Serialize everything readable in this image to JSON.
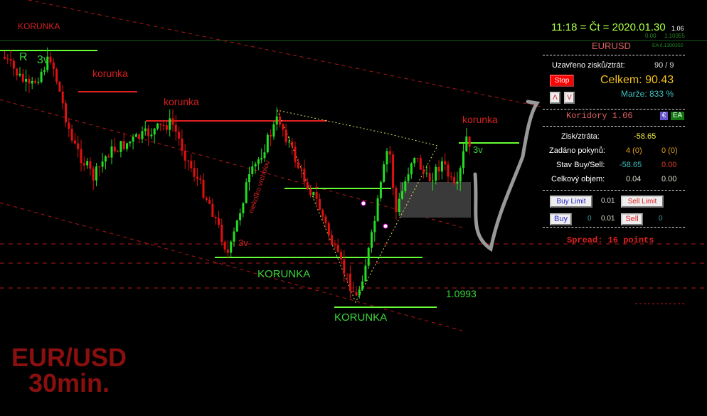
{
  "chart": {
    "labels": {
      "korunka_top": "KORUNKA",
      "korunka_1": "korunka",
      "korunka_2": "korunka",
      "korunka_3": "korunka",
      "korunka_green_1": "KORUNKA",
      "korunka_green_2": "KORUNKA",
      "r_label": "R",
      "three_v_1": "3v",
      "three_v_2": "3v",
      "three_v_3": "3v",
      "price_label": "1.0993",
      "diagonal_note": "niekoľko vrcholov",
      "symbol_watermark": "EUR/USD",
      "timeframe_watermark": "30min."
    },
    "colors": {
      "bull": "#22dd22",
      "bear": "#e01010",
      "level_green": "#66ff33",
      "level_red": "#e02020"
    }
  },
  "panel": {
    "clock": "11:18 = Čt = 2020.01.30",
    "clock_version": "1.06",
    "sub_left": "0.00",
    "sub_right": "1.10355",
    "symbol": "EURUSD",
    "ea_id": "EA č.1300302",
    "closed_label": "Uzavřeno zisků/ztrát:",
    "closed_value": "90 / 9",
    "stop_button": "Stop",
    "total": "Celkem: 90.43",
    "up_button": "Λ",
    "down_button": "V",
    "margin": "Marže:  833 %",
    "title": "Koridory 1.06",
    "euro_badge": "€",
    "ea_badge": "EA",
    "pl_label": "Zisk/ztráta:",
    "pl_value": "-58.65",
    "orders_label": "Zadáno pokynů:",
    "orders_buy": "4 (0)",
    "orders_sell": "0 (0)",
    "state_label": "Stav Buy/Sell:",
    "state_buy": "-58.65",
    "state_sell": "0.00",
    "volume_label": "Celkový objem:",
    "volume_buy": "0.04",
    "volume_sell": "0.00",
    "buy_limit": "Buy Limit",
    "limit_lot": "0.01",
    "sell_limit": "Sell Limit",
    "buy": "Buy",
    "buy_count": "0",
    "lot": "0.01",
    "sell": "Sell",
    "sell_count": "0",
    "spread": "Spread: 16 points"
  }
}
